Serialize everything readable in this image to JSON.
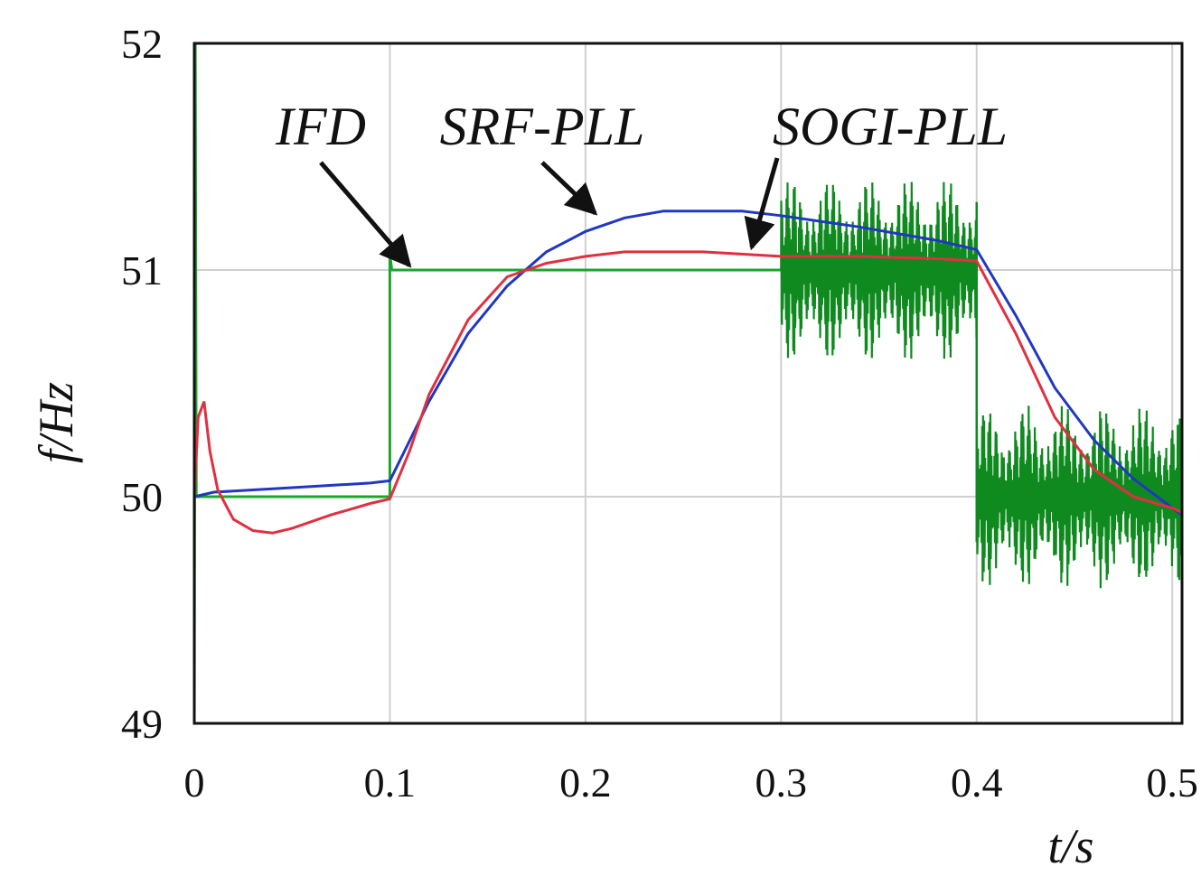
{
  "chart_data": {
    "type": "line",
    "title": "",
    "xlabel": "t/s",
    "ylabel": "f/Hz",
    "xlim": [
      0,
      0.505
    ],
    "ylim": [
      49,
      52
    ],
    "xticks": [
      0,
      0.1,
      0.2,
      0.3,
      0.4,
      0.5
    ],
    "xtick_labels": [
      "0",
      "0.1",
      "0.2",
      "0.3",
      "0.4",
      "0.5"
    ],
    "yticks": [
      49,
      50,
      51,
      52
    ],
    "ytick_labels": [
      "49",
      "50",
      "51",
      "52"
    ],
    "grid": true,
    "legend": "none (series labelled by arrows)",
    "series": [
      {
        "name": "IFD",
        "color": "#1aa62e",
        "segments": [
          {
            "x": [
              0,
              0.0005,
              0.001,
              0.1,
              0.1,
              0.101,
              0.3
            ],
            "y": [
              49,
              52,
              50,
              50,
              51.07,
              51,
              51
            ]
          },
          {
            "x": [
              0.3,
              0.4
            ],
            "y_mean": 51.0,
            "ripple_amplitude": 0.42,
            "ripple_frequency_hz": 300
          },
          {
            "x": [
              0.4,
              0.505
            ],
            "y_mean": 50.0,
            "ripple_amplitude": 0.42,
            "ripple_frequency_hz": 300
          }
        ]
      },
      {
        "name": "SRF-PLL",
        "color": "#2038c0",
        "x": [
          0,
          0.01,
          0.05,
          0.09,
          0.1,
          0.12,
          0.14,
          0.16,
          0.18,
          0.2,
          0.22,
          0.24,
          0.26,
          0.28,
          0.3,
          0.34,
          0.38,
          0.4,
          0.42,
          0.44,
          0.46,
          0.48,
          0.5,
          0.505
        ],
        "y": [
          50.0,
          50.02,
          50.04,
          50.06,
          50.07,
          50.42,
          50.72,
          50.93,
          51.08,
          51.17,
          51.23,
          51.26,
          51.26,
          51.26,
          51.24,
          51.19,
          51.13,
          51.09,
          50.8,
          50.48,
          50.25,
          50.08,
          49.95,
          49.92
        ]
      },
      {
        "name": "SOGI-PLL",
        "color": "#e03040",
        "x": [
          0,
          0.002,
          0.005,
          0.008,
          0.012,
          0.02,
          0.03,
          0.04,
          0.05,
          0.07,
          0.09,
          0.1,
          0.11,
          0.12,
          0.14,
          0.16,
          0.18,
          0.2,
          0.22,
          0.24,
          0.26,
          0.28,
          0.3,
          0.34,
          0.38,
          0.4,
          0.42,
          0.44,
          0.46,
          0.48,
          0.5,
          0.505
        ],
        "y": [
          50.0,
          50.35,
          50.42,
          50.2,
          50.03,
          49.9,
          49.85,
          49.84,
          49.86,
          49.92,
          49.97,
          49.99,
          50.2,
          50.45,
          50.78,
          50.97,
          51.03,
          51.06,
          51.08,
          51.08,
          51.08,
          51.07,
          51.06,
          51.06,
          51.05,
          51.04,
          50.72,
          50.35,
          50.12,
          50.0,
          49.95,
          49.93
        ]
      }
    ],
    "annotations": [
      {
        "text": "IFD",
        "arrow_to": [
          0.11,
          51.02
        ]
      },
      {
        "text": "SRF-PLL",
        "arrow_to": [
          0.205,
          51.25
        ]
      },
      {
        "text": "SOGI-PLL",
        "arrow_to": [
          0.285,
          51.1
        ]
      }
    ]
  }
}
